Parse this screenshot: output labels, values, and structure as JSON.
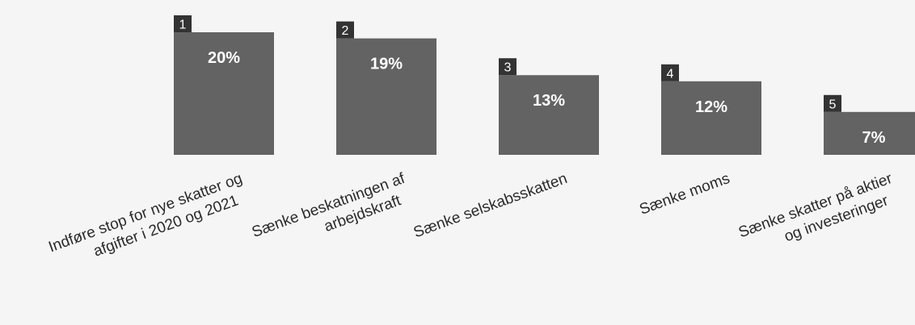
{
  "chart_data": {
    "type": "bar",
    "categories": [
      [
        "Indføre stop for nye skatter og",
        "afgifter i 2020 og 2021"
      ],
      [
        "Sænke beskatningen af",
        "arbejdskraft"
      ],
      [
        "Sænke selskabsskatten"
      ],
      [
        "Sænke moms"
      ],
      [
        "Sænke skatter på aktier",
        "og investeringer"
      ]
    ],
    "ranks": [
      "1",
      "2",
      "3",
      "4",
      "5"
    ],
    "values": [
      20,
      19,
      13,
      12,
      7
    ],
    "value_labels": [
      "20%",
      "19%",
      "13%",
      "12%",
      "7%"
    ],
    "ylim": [
      0,
      20
    ],
    "grid": false,
    "colors": {
      "bar": "#636363",
      "badge": "#333333",
      "background": "#f5f5f5"
    }
  }
}
